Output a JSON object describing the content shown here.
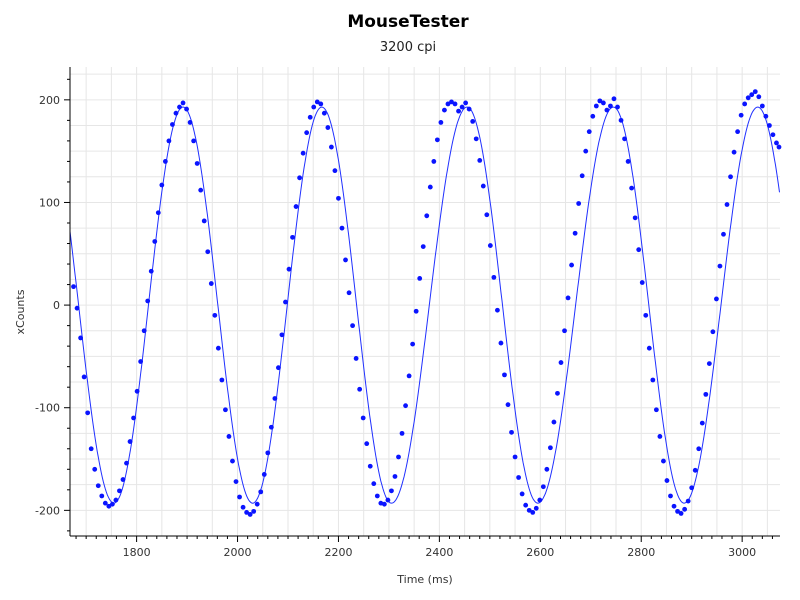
{
  "chart_data": {
    "type": "scatter",
    "title": "MouseTester",
    "subtitle": "3200 cpi",
    "xlabel": "Time (ms)",
    "ylabel": "xCounts",
    "xlim": [
      1668,
      3075
    ],
    "ylim": [
      -225,
      232
    ],
    "xticks": [
      1800,
      2000,
      2200,
      2400,
      2600,
      2800,
      3000
    ],
    "yticks": [
      -200,
      -100,
      0,
      100,
      200
    ],
    "grid": true,
    "legend": "none",
    "colors": {
      "points": "#0a14ff",
      "line": "#2030ff",
      "grid": "#e6e6e6",
      "axis": "#000000"
    },
    "series": [
      {
        "style": "points+fit",
        "model": {
          "amplitude": 193,
          "period_ms": 280,
          "peak_times_ms": [
            1892,
            2167,
            2455,
            2745,
            3031
          ],
          "trough_times_ms": [
            1755,
            2030,
            2305,
            2595,
            2885
          ]
        },
        "points": [
          [
            1675,
            18
          ],
          [
            1682,
            -3
          ],
          [
            1689,
            -32
          ],
          [
            1696,
            -70
          ],
          [
            1703,
            -105
          ],
          [
            1710,
            -140
          ],
          [
            1717,
            -160
          ],
          [
            1724,
            -176
          ],
          [
            1731,
            -186
          ],
          [
            1738,
            -193
          ],
          [
            1745,
            -196
          ],
          [
            1752,
            -194
          ],
          [
            1759,
            -190
          ],
          [
            1766,
            -181
          ],
          [
            1773,
            -170
          ],
          [
            1780,
            -154
          ],
          [
            1787,
            -133
          ],
          [
            1794,
            -110
          ],
          [
            1801,
            -84
          ],
          [
            1808,
            -55
          ],
          [
            1815,
            -25
          ],
          [
            1822,
            4
          ],
          [
            1829,
            33
          ],
          [
            1836,
            62
          ],
          [
            1843,
            90
          ],
          [
            1850,
            117
          ],
          [
            1857,
            140
          ],
          [
            1864,
            160
          ],
          [
            1871,
            176
          ],
          [
            1878,
            187
          ],
          [
            1885,
            193
          ],
          [
            1892,
            197
          ],
          [
            1899,
            191
          ],
          [
            1906,
            178
          ],
          [
            1913,
            160
          ],
          [
            1920,
            138
          ],
          [
            1927,
            112
          ],
          [
            1934,
            82
          ],
          [
            1941,
            52
          ],
          [
            1948,
            21
          ],
          [
            1955,
            -10
          ],
          [
            1962,
            -42
          ],
          [
            1969,
            -73
          ],
          [
            1976,
            -102
          ],
          [
            1983,
            -128
          ],
          [
            1990,
            -152
          ],
          [
            1997,
            -172
          ],
          [
            2004,
            -187
          ],
          [
            2011,
            -197
          ],
          [
            2018,
            -202
          ],
          [
            2025,
            -204
          ],
          [
            2032,
            -201
          ],
          [
            2039,
            -194
          ],
          [
            2046,
            -182
          ],
          [
            2053,
            -165
          ],
          [
            2060,
            -144
          ],
          [
            2067,
            -119
          ],
          [
            2074,
            -91
          ],
          [
            2081,
            -61
          ],
          [
            2088,
            -29
          ],
          [
            2095,
            3
          ],
          [
            2102,
            35
          ],
          [
            2109,
            66
          ],
          [
            2116,
            96
          ],
          [
            2123,
            124
          ],
          [
            2130,
            148
          ],
          [
            2137,
            168
          ],
          [
            2144,
            183
          ],
          [
            2151,
            193
          ],
          [
            2158,
            198
          ],
          [
            2165,
            196
          ],
          [
            2172,
            187
          ],
          [
            2179,
            173
          ],
          [
            2186,
            154
          ],
          [
            2193,
            131
          ],
          [
            2200,
            104
          ],
          [
            2207,
            75
          ],
          [
            2214,
            44
          ],
          [
            2221,
            12
          ],
          [
            2228,
            -20
          ],
          [
            2235,
            -52
          ],
          [
            2242,
            -82
          ],
          [
            2249,
            -110
          ],
          [
            2256,
            -135
          ],
          [
            2263,
            -157
          ],
          [
            2270,
            -174
          ],
          [
            2277,
            -186
          ],
          [
            2284,
            -193
          ],
          [
            2291,
            -194
          ],
          [
            2298,
            -190
          ],
          [
            2305,
            -181
          ],
          [
            2312,
            -167
          ],
          [
            2319,
            -148
          ],
          [
            2326,
            -125
          ],
          [
            2333,
            -98
          ],
          [
            2340,
            -69
          ],
          [
            2347,
            -38
          ],
          [
            2354,
            -6
          ],
          [
            2361,
            26
          ],
          [
            2368,
            57
          ],
          [
            2375,
            87
          ],
          [
            2382,
            115
          ],
          [
            2389,
            140
          ],
          [
            2396,
            161
          ],
          [
            2403,
            178
          ],
          [
            2410,
            190
          ],
          [
            2417,
            196
          ],
          [
            2424,
            198
          ],
          [
            2431,
            196
          ],
          [
            2438,
            189
          ],
          [
            2445,
            193
          ],
          [
            2452,
            197
          ],
          [
            2459,
            191
          ],
          [
            2466,
            179
          ],
          [
            2473,
            162
          ],
          [
            2480,
            141
          ],
          [
            2487,
            116
          ],
          [
            2494,
            88
          ],
          [
            2501,
            58
          ],
          [
            2508,
            27
          ],
          [
            2515,
            -5
          ],
          [
            2522,
            -37
          ],
          [
            2529,
            -68
          ],
          [
            2536,
            -97
          ],
          [
            2543,
            -124
          ],
          [
            2550,
            -148
          ],
          [
            2557,
            -168
          ],
          [
            2564,
            -184
          ],
          [
            2571,
            -195
          ],
          [
            2578,
            -200
          ],
          [
            2585,
            -202
          ],
          [
            2592,
            -198
          ],
          [
            2599,
            -190
          ],
          [
            2606,
            -177
          ],
          [
            2613,
            -160
          ],
          [
            2620,
            -139
          ],
          [
            2627,
            -114
          ],
          [
            2634,
            -86
          ],
          [
            2641,
            -56
          ],
          [
            2648,
            -25
          ],
          [
            2655,
            7
          ],
          [
            2662,
            39
          ],
          [
            2669,
            70
          ],
          [
            2676,
            99
          ],
          [
            2683,
            126
          ],
          [
            2690,
            150
          ],
          [
            2697,
            169
          ],
          [
            2704,
            184
          ],
          [
            2711,
            194
          ],
          [
            2718,
            199
          ],
          [
            2725,
            197
          ],
          [
            2732,
            190
          ],
          [
            2739,
            194
          ],
          [
            2746,
            201
          ],
          [
            2753,
            193
          ],
          [
            2760,
            180
          ],
          [
            2767,
            162
          ],
          [
            2774,
            140
          ],
          [
            2781,
            114
          ],
          [
            2788,
            85
          ],
          [
            2795,
            54
          ],
          [
            2802,
            22
          ],
          [
            2809,
            -10
          ],
          [
            2816,
            -42
          ],
          [
            2823,
            -73
          ],
          [
            2830,
            -102
          ],
          [
            2837,
            -128
          ],
          [
            2844,
            -152
          ],
          [
            2851,
            -171
          ],
          [
            2858,
            -186
          ],
          [
            2865,
            -196
          ],
          [
            2872,
            -201
          ],
          [
            2879,
            -203
          ],
          [
            2886,
            -199
          ],
          [
            2893,
            -191
          ],
          [
            2900,
            -178
          ],
          [
            2907,
            -161
          ],
          [
            2914,
            -140
          ],
          [
            2921,
            -115
          ],
          [
            2928,
            -87
          ],
          [
            2935,
            -57
          ],
          [
            2942,
            -26
          ],
          [
            2949,
            6
          ],
          [
            2956,
            38
          ],
          [
            2963,
            69
          ],
          [
            2970,
            98
          ],
          [
            2977,
            125
          ],
          [
            2984,
            149
          ],
          [
            2991,
            169
          ],
          [
            2998,
            185
          ],
          [
            3005,
            196
          ],
          [
            3012,
            202
          ],
          [
            3019,
            205
          ],
          [
            3026,
            208
          ],
          [
            3033,
            203
          ],
          [
            3040,
            194
          ],
          [
            3047,
            184
          ],
          [
            3054,
            175
          ],
          [
            3061,
            166
          ],
          [
            3068,
            158
          ],
          [
            3073,
            154
          ]
        ]
      }
    ]
  }
}
